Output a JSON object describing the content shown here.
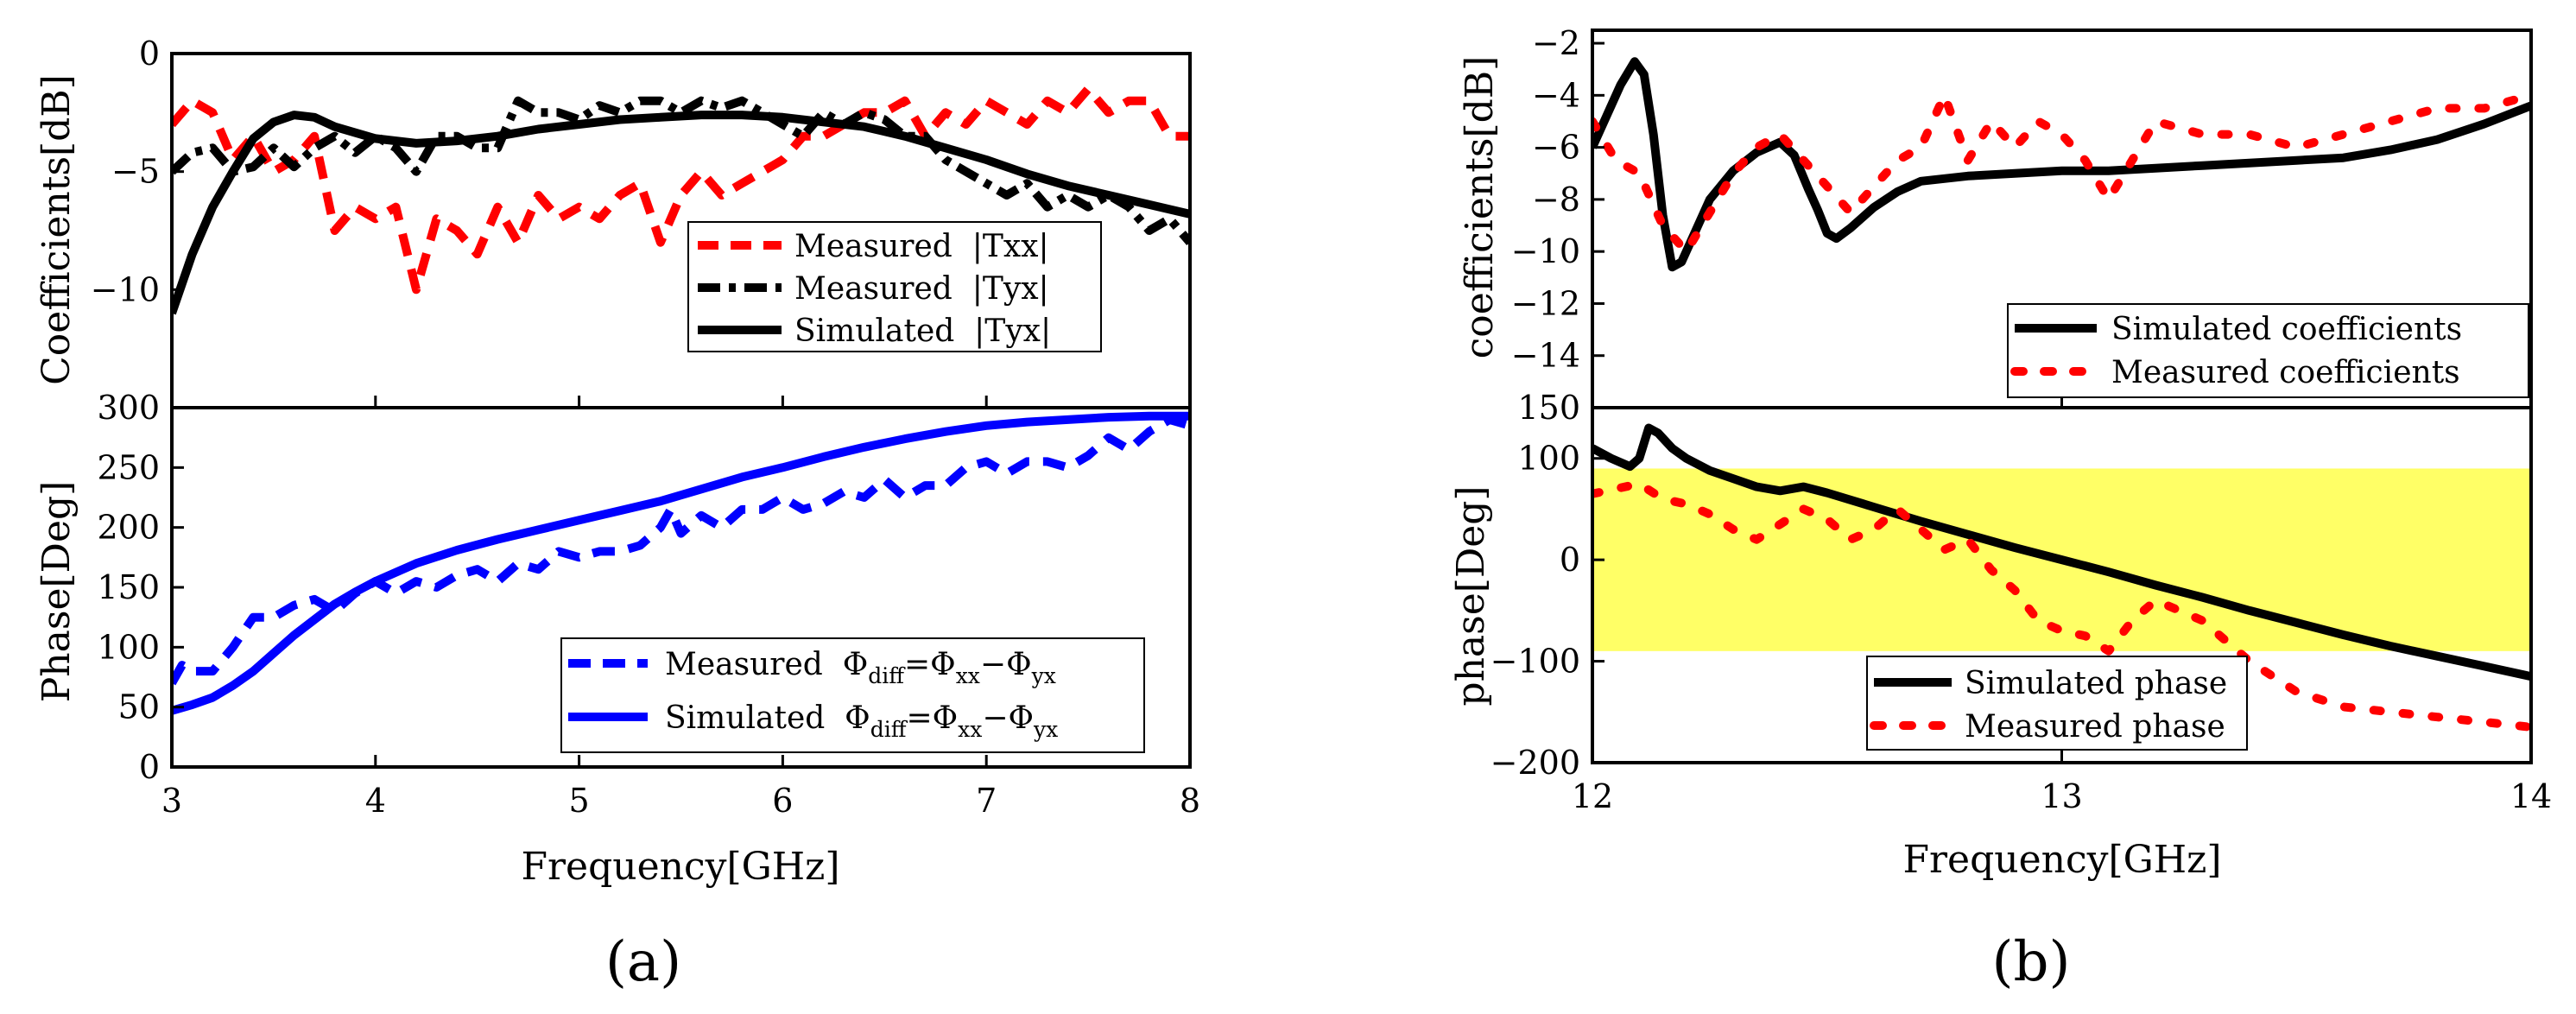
{
  "chart_data": [
    {
      "id": "a_top",
      "type": "line",
      "title": "",
      "xlabel": "",
      "ylabel": "Coefficients[dB]",
      "xlim": [
        3,
        8
      ],
      "ylim": [
        -15,
        0
      ],
      "yticks": [
        0,
        -5,
        -10
      ],
      "xticks": [
        3,
        4,
        5,
        6,
        7,
        8
      ],
      "legend_position": "center-right",
      "series": [
        {
          "name": "Measured  |Txx|",
          "color": "#ff0000",
          "style": "dashed",
          "x": [
            3.0,
            3.1,
            3.2,
            3.3,
            3.4,
            3.5,
            3.6,
            3.7,
            3.8,
            3.9,
            4.0,
            4.1,
            4.2,
            4.3,
            4.4,
            4.5,
            4.6,
            4.7,
            4.8,
            4.9,
            5.0,
            5.1,
            5.2,
            5.3,
            5.4,
            5.5,
            5.6,
            5.7,
            5.8,
            5.9,
            6.0,
            6.1,
            6.2,
            6.3,
            6.4,
            6.5,
            6.6,
            6.7,
            6.8,
            6.9,
            7.0,
            7.1,
            7.2,
            7.3,
            7.4,
            7.5,
            7.6,
            7.7,
            7.8,
            7.9,
            8.0
          ],
          "y": [
            -3,
            -2,
            -2.5,
            -4.5,
            -3.5,
            -5,
            -4.5,
            -3.5,
            -7.5,
            -6.5,
            -7,
            -6.5,
            -10,
            -7,
            -7.5,
            -8.5,
            -6.5,
            -8,
            -6,
            -7,
            -6.5,
            -7,
            -6,
            -5.5,
            -8,
            -6,
            -5,
            -6,
            -5.5,
            -5,
            -4.5,
            -3.5,
            -3.5,
            -3,
            -2.5,
            -2.5,
            -2,
            -3.5,
            -2.5,
            -3,
            -2,
            -2.5,
            -3,
            -2,
            -2.5,
            -1.5,
            -2.5,
            -2,
            -2,
            -3.5,
            -3.5
          ]
        },
        {
          "name": "Measured  |Tyx|",
          "color": "#000000",
          "style": "dashdot",
          "x": [
            3.0,
            3.1,
            3.2,
            3.3,
            3.4,
            3.5,
            3.6,
            3.7,
            3.8,
            3.9,
            4.0,
            4.1,
            4.2,
            4.3,
            4.4,
            4.5,
            4.6,
            4.7,
            4.8,
            4.9,
            5.0,
            5.1,
            5.2,
            5.3,
            5.4,
            5.5,
            5.6,
            5.7,
            5.8,
            5.9,
            6.0,
            6.1,
            6.2,
            6.3,
            6.4,
            6.5,
            6.6,
            6.7,
            6.8,
            6.9,
            7.0,
            7.1,
            7.2,
            7.3,
            7.4,
            7.5,
            7.6,
            7.7,
            7.8,
            7.9,
            8.0
          ],
          "y": [
            -5,
            -4.2,
            -4,
            -5,
            -4.8,
            -4,
            -4.8,
            -4,
            -3.5,
            -4.2,
            -3.5,
            -4,
            -5,
            -3.5,
            -3.5,
            -4,
            -4,
            -2,
            -2.5,
            -2.5,
            -2.8,
            -2.2,
            -2.5,
            -2.0,
            -2,
            -2.5,
            -2.0,
            -2.3,
            -2.0,
            -2.5,
            -3,
            -3.5,
            -2.5,
            -3,
            -2.5,
            -2.8,
            -3.5,
            -3.5,
            -4.5,
            -5,
            -5.5,
            -6,
            -5.5,
            -6.5,
            -6,
            -6.5,
            -6,
            -6.5,
            -7.5,
            -7,
            -8
          ]
        },
        {
          "name": "Simulated  |Tyx|",
          "color": "#000000",
          "style": "solid",
          "x": [
            3.0,
            3.1,
            3.2,
            3.3,
            3.4,
            3.5,
            3.6,
            3.7,
            3.8,
            4.0,
            4.2,
            4.4,
            4.6,
            4.8,
            5.0,
            5.2,
            5.4,
            5.6,
            5.8,
            6.0,
            6.2,
            6.4,
            6.6,
            6.8,
            7.0,
            7.2,
            7.4,
            7.6,
            7.8,
            8.0
          ],
          "y": [
            -11,
            -8.5,
            -6.5,
            -5,
            -3.6,
            -2.9,
            -2.6,
            -2.7,
            -3.1,
            -3.6,
            -3.8,
            -3.7,
            -3.5,
            -3.2,
            -3.0,
            -2.8,
            -2.7,
            -2.6,
            -2.6,
            -2.7,
            -2.9,
            -3.1,
            -3.5,
            -4.0,
            -4.5,
            -5.1,
            -5.6,
            -6.0,
            -6.4,
            -6.8
          ]
        }
      ]
    },
    {
      "id": "a_bottom",
      "type": "line",
      "title": "",
      "xlabel": "Frequency[GHz]",
      "ylabel": "Phase[Deg]",
      "xlim": [
        3,
        8
      ],
      "ylim": [
        0,
        300
      ],
      "yticks": [
        300,
        250,
        200,
        150,
        100,
        50,
        0
      ],
      "xticks": [
        3,
        4,
        5,
        6,
        7,
        8
      ],
      "legend_position": "bottom-right",
      "legend": [
        {
          "prefix": "Measured  Φ",
          "sub1": "diff",
          "mid1": "=Φ",
          "sub2": "xx",
          "mid2": "−Φ",
          "sub3": "yx"
        },
        {
          "prefix": "Simulated  Φ",
          "sub1": "diff",
          "mid1": "=Φ",
          "sub2": "xx",
          "mid2": "−Φ",
          "sub3": "yx"
        }
      ],
      "series": [
        {
          "name": "Measured Φdiff=Φxx−Φyx",
          "color": "#0000ff",
          "style": "dashed",
          "x": [
            3.0,
            3.05,
            3.1,
            3.2,
            3.3,
            3.4,
            3.5,
            3.6,
            3.7,
            3.8,
            3.9,
            4.0,
            4.1,
            4.2,
            4.3,
            4.4,
            4.5,
            4.6,
            4.7,
            4.8,
            4.9,
            5.0,
            5.1,
            5.2,
            5.3,
            5.4,
            5.45,
            5.5,
            5.6,
            5.7,
            5.8,
            5.9,
            6.0,
            6.1,
            6.2,
            6.3,
            6.4,
            6.5,
            6.6,
            6.7,
            6.8,
            6.9,
            7.0,
            7.1,
            7.2,
            7.3,
            7.4,
            7.5,
            7.6,
            7.7,
            7.8,
            7.9,
            8.0
          ],
          "y": [
            70,
            85,
            80,
            80,
            100,
            125,
            125,
            135,
            140,
            130,
            145,
            155,
            145,
            155,
            150,
            160,
            165,
            155,
            170,
            165,
            180,
            175,
            180,
            180,
            185,
            200,
            215,
            195,
            210,
            200,
            215,
            215,
            225,
            215,
            220,
            230,
            225,
            240,
            225,
            235,
            235,
            250,
            255,
            245,
            255,
            255,
            250,
            260,
            275,
            265,
            280,
            290,
            285
          ]
        },
        {
          "name": "Simulated Φdiff=Φxx−Φyx",
          "color": "#0000ff",
          "style": "solid",
          "x": [
            3.0,
            3.1,
            3.2,
            3.3,
            3.4,
            3.5,
            3.6,
            3.7,
            3.8,
            3.9,
            4.0,
            4.2,
            4.4,
            4.6,
            4.8,
            5.0,
            5.2,
            5.4,
            5.6,
            5.8,
            6.0,
            6.2,
            6.4,
            6.6,
            6.8,
            7.0,
            7.2,
            7.4,
            7.6,
            7.8,
            8.0
          ],
          "y": [
            47,
            52,
            58,
            68,
            80,
            95,
            110,
            123,
            136,
            146,
            155,
            170,
            181,
            190,
            198,
            206,
            214,
            222,
            232,
            242,
            250,
            259,
            267,
            274,
            280,
            285,
            288,
            290,
            292,
            293,
            293
          ]
        }
      ]
    },
    {
      "id": "b_top",
      "type": "line",
      "title": "",
      "xlabel": "",
      "ylabel": "coefficients[dB]",
      "xlim": [
        12,
        14
      ],
      "ylim": [
        -16,
        -1.5
      ],
      "yticks": [
        -2,
        -4,
        -6,
        -8,
        -10,
        -12,
        -14
      ],
      "xticks": [
        12,
        13,
        14
      ],
      "legend_position": "bottom-right",
      "series": [
        {
          "name": "Simulated coefficients",
          "color": "#000000",
          "style": "solid",
          "x": [
            12.0,
            12.03,
            12.06,
            12.09,
            12.11,
            12.13,
            12.15,
            12.17,
            12.19,
            12.22,
            12.25,
            12.3,
            12.35,
            12.4,
            12.43,
            12.46,
            12.48,
            12.5,
            12.52,
            12.55,
            12.6,
            12.65,
            12.7,
            12.8,
            12.9,
            13.0,
            13.1,
            13.2,
            13.3,
            13.4,
            13.5,
            13.6,
            13.7,
            13.8,
            13.9,
            14.0
          ],
          "y": [
            -6,
            -4.8,
            -3.6,
            -2.7,
            -3.2,
            -5.5,
            -8.6,
            -10.6,
            -10.4,
            -9.2,
            -8,
            -6.9,
            -6.2,
            -5.8,
            -6.3,
            -7.6,
            -8.4,
            -9.3,
            -9.5,
            -9.1,
            -8.3,
            -7.7,
            -7.3,
            -7.1,
            -7.0,
            -6.9,
            -6.9,
            -6.8,
            -6.7,
            -6.6,
            -6.5,
            -6.4,
            -6.1,
            -5.7,
            -5.1,
            -4.4
          ]
        },
        {
          "name": "Measured coefficients",
          "color": "#ff0000",
          "style": "dotted",
          "x": [
            12.0,
            12.05,
            12.1,
            12.15,
            12.2,
            12.25,
            12.3,
            12.35,
            12.4,
            12.45,
            12.5,
            12.55,
            12.6,
            12.65,
            12.7,
            12.75,
            12.8,
            12.85,
            12.9,
            12.95,
            13.0,
            13.05,
            13.1,
            13.15,
            13.2,
            13.3,
            13.4,
            13.5,
            13.6,
            13.7,
            13.8,
            13.9,
            14.0
          ],
          "y": [
            -5,
            -6.5,
            -7,
            -9,
            -10,
            -8.5,
            -7,
            -6,
            -5.5,
            -6.5,
            -7.5,
            -8.5,
            -7.5,
            -6.5,
            -6,
            -4,
            -6.5,
            -5,
            -6,
            -5,
            -5.5,
            -6.5,
            -8,
            -6.5,
            -5,
            -5.5,
            -5.5,
            -6,
            -5.5,
            -5,
            -4.5,
            -4.5,
            -4
          ]
        }
      ]
    },
    {
      "id": "b_bottom",
      "type": "line",
      "title": "",
      "xlabel": "Frequency[GHz]",
      "ylabel": "phase[Deg]",
      "xlim": [
        12,
        14
      ],
      "ylim": [
        -200,
        150
      ],
      "yticks": [
        150,
        100,
        0,
        -100,
        -200
      ],
      "xticks": [
        12,
        13,
        14
      ],
      "legend_position": "bottom-center",
      "shaded_band": {
        "y_range": [
          -90,
          90
        ],
        "color": "#ffff66"
      },
      "series": [
        {
          "name": "Simulated phase",
          "color": "#000000",
          "style": "solid",
          "x": [
            12.0,
            12.04,
            12.08,
            12.1,
            12.12,
            12.14,
            12.17,
            12.2,
            12.25,
            12.3,
            12.35,
            12.4,
            12.45,
            12.5,
            12.6,
            12.7,
            12.8,
            12.9,
            13.0,
            13.1,
            13.2,
            13.3,
            13.4,
            13.5,
            13.6,
            13.7,
            13.8,
            13.9,
            14.0
          ],
          "y": [
            110,
            100,
            92,
            100,
            130,
            125,
            110,
            100,
            88,
            80,
            72,
            68,
            72,
            66,
            52,
            38,
            25,
            12,
            0,
            -12,
            -25,
            -37,
            -50,
            -62,
            -74,
            -85,
            -95,
            -105,
            -115
          ]
        },
        {
          "name": "Measured phase",
          "color": "#ff0000",
          "style": "dotted",
          "x": [
            12.0,
            12.05,
            12.1,
            12.15,
            12.2,
            12.25,
            12.3,
            12.35,
            12.4,
            12.45,
            12.5,
            12.55,
            12.6,
            12.65,
            12.7,
            12.75,
            12.8,
            12.85,
            12.9,
            12.95,
            13.0,
            13.05,
            13.1,
            13.15,
            13.2,
            13.3,
            13.4,
            13.5,
            13.6,
            13.7,
            13.8,
            13.9,
            14.0
          ],
          "y": [
            65,
            70,
            75,
            60,
            55,
            45,
            30,
            20,
            35,
            50,
            40,
            20,
            30,
            50,
            30,
            10,
            20,
            -10,
            -30,
            -60,
            -70,
            -75,
            -90,
            -60,
            -40,
            -60,
            -100,
            -130,
            -145,
            -150,
            -155,
            -160,
            -165
          ]
        }
      ]
    }
  ],
  "panels": {
    "a": "(a)",
    "b": "(b)"
  },
  "colors": {
    "red": "#ff0000",
    "black": "#000000",
    "blue": "#0000ff",
    "band": "#ffff66"
  }
}
